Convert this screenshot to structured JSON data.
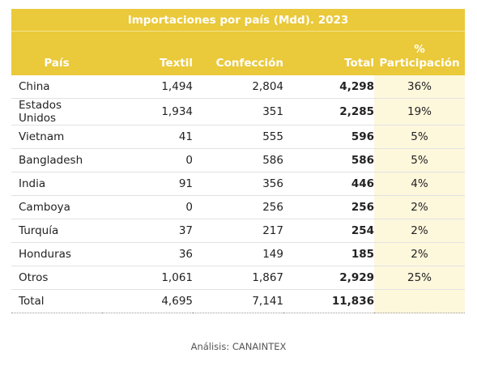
{
  "chart_data": {
    "type": "table",
    "title": "Importaciones por país (Mdd). 2023",
    "columns": [
      "País",
      "Textil",
      "Confección",
      "Total",
      "% Participación"
    ],
    "pct_header_line1": "%",
    "pct_header_line2": "Participación",
    "rows": [
      {
        "pais": "China",
        "textil": "1,494",
        "confeccion": "2,804",
        "total": "4,298",
        "pct": "36%"
      },
      {
        "pais": "Estados Unidos",
        "textil": "1,934",
        "confeccion": "351",
        "total": "2,285",
        "pct": "19%"
      },
      {
        "pais": "Vietnam",
        "textil": "41",
        "confeccion": "555",
        "total": "596",
        "pct": "5%"
      },
      {
        "pais": "Bangladesh",
        "textil": "0",
        "confeccion": "586",
        "total": "586",
        "pct": "5%"
      },
      {
        "pais": "India",
        "textil": "91",
        "confeccion": "356",
        "total": "446",
        "pct": "4%"
      },
      {
        "pais": "Camboya",
        "textil": "0",
        "confeccion": "256",
        "total": "256",
        "pct": "2%"
      },
      {
        "pais": "Turquía",
        "textil": "37",
        "confeccion": "217",
        "total": "254",
        "pct": "2%"
      },
      {
        "pais": "Honduras",
        "textil": "36",
        "confeccion": "149",
        "total": "185",
        "pct": "2%"
      },
      {
        "pais": "Otros",
        "textil": "1,061",
        "confeccion": "1,867",
        "total": "2,929",
        "pct": "25%"
      },
      {
        "pais": "Total",
        "textil": "4,695",
        "confeccion": "7,141",
        "total": "11,836",
        "pct": ""
      }
    ]
  },
  "footer": "Análisis: CANAINTEX",
  "colors": {
    "header": "#eac93a",
    "highlight_column": "#fdf7dc"
  }
}
